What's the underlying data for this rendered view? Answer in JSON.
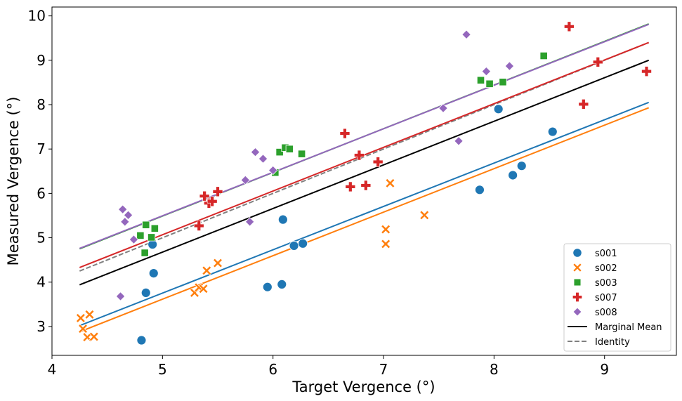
{
  "chart_data": {
    "type": "scatter",
    "title": "",
    "xlabel": "Target Vergence (°)",
    "ylabel": "Measured Vergence (°)",
    "xlim": [
      4.0,
      9.65
    ],
    "ylim": [
      2.35,
      10.2
    ],
    "xticks": [
      "4",
      "5",
      "6",
      "7",
      "8",
      "9"
    ],
    "yticks": [
      "3",
      "4",
      "5",
      "6",
      "7",
      "8",
      "9",
      "10"
    ],
    "grid": false,
    "legend_position": "bottom-right",
    "series": [
      {
        "name": "s001",
        "marker": "circle",
        "color": "#1f77b4",
        "points": [
          [
            4.81,
            2.69
          ],
          [
            4.85,
            3.76
          ],
          [
            4.91,
            4.85
          ],
          [
            4.92,
            4.2
          ],
          [
            5.95,
            3.89
          ],
          [
            6.08,
            3.95
          ],
          [
            6.09,
            5.41
          ],
          [
            6.19,
            4.82
          ],
          [
            6.27,
            4.87
          ],
          [
            7.87,
            6.08
          ],
          [
            8.04,
            7.9
          ],
          [
            8.17,
            6.41
          ],
          [
            8.25,
            6.62
          ],
          [
            8.53,
            7.39
          ]
        ],
        "fit": [
          [
            4.25,
            3.02
          ],
          [
            9.4,
            8.05
          ]
        ]
      },
      {
        "name": "s002",
        "marker": "x",
        "color": "#ff7f0e",
        "points": [
          [
            4.26,
            3.19
          ],
          [
            4.28,
            2.95
          ],
          [
            4.32,
            2.76
          ],
          [
            4.34,
            3.27
          ],
          [
            4.38,
            2.77
          ],
          [
            5.29,
            3.76
          ],
          [
            5.33,
            3.88
          ],
          [
            5.37,
            3.85
          ],
          [
            5.4,
            4.26
          ],
          [
            5.5,
            4.43
          ],
          [
            7.02,
            5.19
          ],
          [
            7.02,
            4.86
          ],
          [
            7.06,
            6.23
          ],
          [
            7.37,
            5.51
          ]
        ],
        "fit": [
          [
            4.25,
            2.88
          ],
          [
            9.4,
            7.93
          ]
        ]
      },
      {
        "name": "s003",
        "marker": "square",
        "color": "#2ca02c",
        "points": [
          [
            4.8,
            5.05
          ],
          [
            4.84,
            4.66
          ],
          [
            4.85,
            5.29
          ],
          [
            4.9,
            5.01
          ],
          [
            4.93,
            5.21
          ],
          [
            6.02,
            6.47
          ],
          [
            6.06,
            6.93
          ],
          [
            6.11,
            7.03
          ],
          [
            6.15,
            7.0
          ],
          [
            6.26,
            6.89
          ],
          [
            7.88,
            8.55
          ],
          [
            7.96,
            8.47
          ],
          [
            8.08,
            8.51
          ],
          [
            8.45,
            9.1
          ]
        ],
        "fit": [
          [
            4.25,
            4.75
          ],
          [
            9.4,
            9.82
          ]
        ]
      },
      {
        "name": "s007",
        "marker": "plus",
        "color": "#d62728",
        "points": [
          [
            5.33,
            5.27
          ],
          [
            5.38,
            5.94
          ],
          [
            5.42,
            5.78
          ],
          [
            5.45,
            5.82
          ],
          [
            5.5,
            6.04
          ],
          [
            6.65,
            7.35
          ],
          [
            6.7,
            6.15
          ],
          [
            6.78,
            6.86
          ],
          [
            6.84,
            6.18
          ],
          [
            6.95,
            6.71
          ],
          [
            8.68,
            9.76
          ],
          [
            8.81,
            8.01
          ],
          [
            8.94,
            8.96
          ],
          [
            9.38,
            8.75
          ]
        ],
        "fit": [
          [
            4.25,
            4.33
          ],
          [
            9.4,
            9.4
          ]
        ]
      },
      {
        "name": "s008",
        "marker": "diamond",
        "color": "#9467bd",
        "points": [
          [
            4.62,
            3.68
          ],
          [
            4.64,
            5.64
          ],
          [
            4.66,
            5.36
          ],
          [
            4.69,
            5.51
          ],
          [
            4.74,
            4.96
          ],
          [
            5.75,
            6.3
          ],
          [
            5.79,
            5.36
          ],
          [
            5.84,
            6.93
          ],
          [
            5.91,
            6.78
          ],
          [
            6.0,
            6.52
          ],
          [
            7.54,
            7.92
          ],
          [
            7.68,
            7.18
          ],
          [
            7.75,
            9.58
          ],
          [
            7.93,
            8.75
          ],
          [
            8.14,
            8.87
          ]
        ],
        "fit": [
          [
            4.25,
            4.76
          ],
          [
            9.4,
            9.81
          ]
        ]
      }
    ],
    "extra_lines": [
      {
        "name": "Marginal Mean",
        "color": "#000000",
        "dash": "solid",
        "points": [
          [
            4.25,
            3.94
          ],
          [
            9.4,
            9.0
          ]
        ]
      },
      {
        "name": "Identity",
        "color": "#808080",
        "dash": "dashed",
        "points": [
          [
            4.25,
            4.25
          ],
          [
            9.4,
            9.4
          ]
        ]
      }
    ]
  }
}
